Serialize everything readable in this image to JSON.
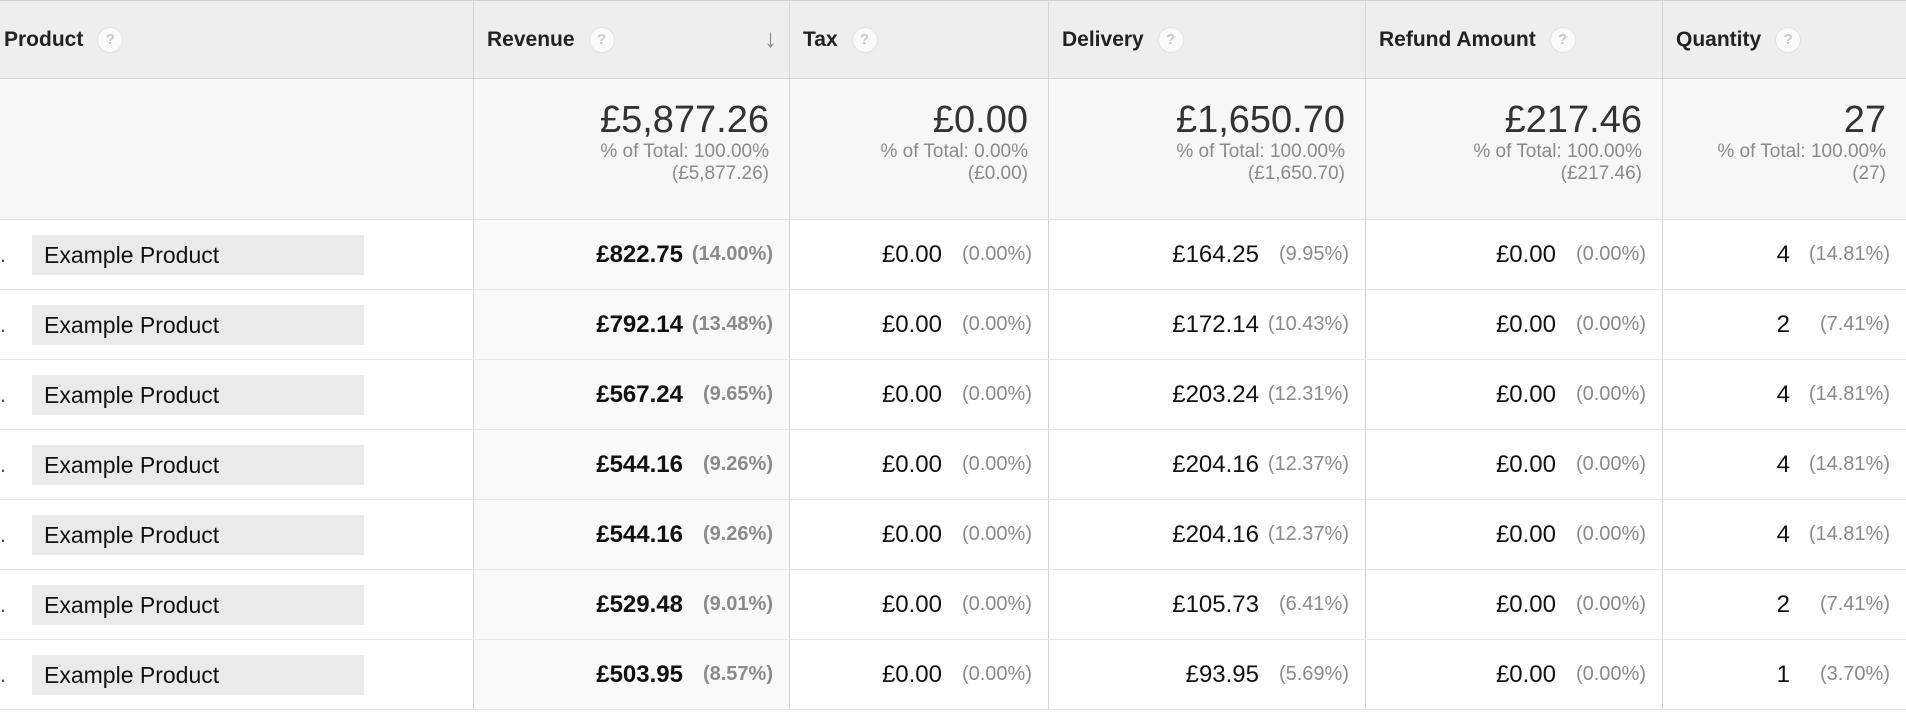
{
  "header": {
    "columns": [
      {
        "label": "Product"
      },
      {
        "label": "Revenue",
        "sort_icon": "arrow-down-icon"
      },
      {
        "label": "Tax"
      },
      {
        "label": "Delivery"
      },
      {
        "label": "Refund Amount"
      },
      {
        "label": "Quantity"
      }
    ],
    "help_glyph": "?",
    "sort_glyph": "↓"
  },
  "totals": {
    "revenue": {
      "value": "£5,877.26",
      "pct": "% of Total: 100.00%",
      "abs": "(£5,877.26)"
    },
    "tax": {
      "value": "£0.00",
      "pct": "% of Total: 0.00%",
      "abs": "(£0.00)"
    },
    "delivery": {
      "value": "£1,650.70",
      "pct": "% of Total: 100.00%",
      "abs": "(£1,650.70)"
    },
    "refund": {
      "value": "£217.46",
      "pct": "% of Total: 100.00%",
      "abs": "(£217.46)"
    },
    "quantity": {
      "value": "27",
      "pct": "% of Total: 100.00%",
      "abs": "(27)"
    }
  },
  "rows": [
    {
      "bullet": ".",
      "product": "Example Product",
      "revenue": "£822.75",
      "revenue_pct": "(14.00%)",
      "tax": "£0.00",
      "tax_pct": "(0.00%)",
      "delivery": "£164.25",
      "delivery_pct": "(9.95%)",
      "refund": "£0.00",
      "refund_pct": "(0.00%)",
      "quantity": "4",
      "quantity_pct": "(14.81%)"
    },
    {
      "bullet": ".",
      "product": "Example Product",
      "revenue": "£792.14",
      "revenue_pct": "(13.48%)",
      "tax": "£0.00",
      "tax_pct": "(0.00%)",
      "delivery": "£172.14",
      "delivery_pct": "(10.43%)",
      "refund": "£0.00",
      "refund_pct": "(0.00%)",
      "quantity": "2",
      "quantity_pct": "(7.41%)"
    },
    {
      "bullet": ".",
      "product": "Example Product",
      "revenue": "£567.24",
      "revenue_pct": "(9.65%)",
      "tax": "£0.00",
      "tax_pct": "(0.00%)",
      "delivery": "£203.24",
      "delivery_pct": "(12.31%)",
      "refund": "£0.00",
      "refund_pct": "(0.00%)",
      "quantity": "4",
      "quantity_pct": "(14.81%)"
    },
    {
      "bullet": ".",
      "product": "Example Product",
      "revenue": "£544.16",
      "revenue_pct": "(9.26%)",
      "tax": "£0.00",
      "tax_pct": "(0.00%)",
      "delivery": "£204.16",
      "delivery_pct": "(12.37%)",
      "refund": "£0.00",
      "refund_pct": "(0.00%)",
      "quantity": "4",
      "quantity_pct": "(14.81%)"
    },
    {
      "bullet": ".",
      "product": "Example Product",
      "revenue": "£544.16",
      "revenue_pct": "(9.26%)",
      "tax": "£0.00",
      "tax_pct": "(0.00%)",
      "delivery": "£204.16",
      "delivery_pct": "(12.37%)",
      "refund": "£0.00",
      "refund_pct": "(0.00%)",
      "quantity": "4",
      "quantity_pct": "(14.81%)"
    },
    {
      "bullet": ".",
      "product": "Example Product",
      "revenue": "£529.48",
      "revenue_pct": "(9.01%)",
      "tax": "£0.00",
      "tax_pct": "(0.00%)",
      "delivery": "£105.73",
      "delivery_pct": "(6.41%)",
      "refund": "£0.00",
      "refund_pct": "(0.00%)",
      "quantity": "2",
      "quantity_pct": "(7.41%)"
    },
    {
      "bullet": ".",
      "product": "Example Product",
      "revenue": "£503.95",
      "revenue_pct": "(8.57%)",
      "tax": "£0.00",
      "tax_pct": "(0.00%)",
      "delivery": "£93.95",
      "delivery_pct": "(5.69%)",
      "refund": "£0.00",
      "refund_pct": "(0.00%)",
      "quantity": "1",
      "quantity_pct": "(3.70%)"
    }
  ]
}
